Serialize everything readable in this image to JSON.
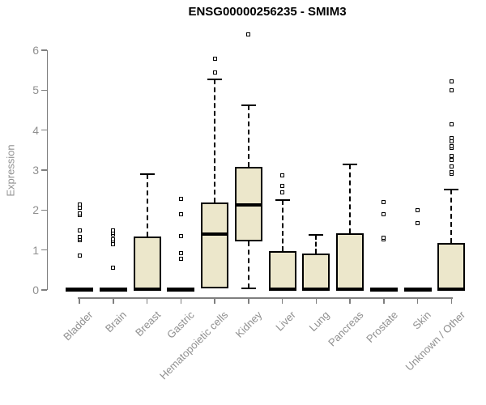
{
  "title": "ENSG00000256235 - SMIM3",
  "chart_data": {
    "type": "boxplot",
    "title": "ENSG00000256235 - SMIM3",
    "xlabel": "",
    "ylabel": "Expression",
    "ylim": [
      0,
      6.5
    ],
    "yticks": [
      0,
      1,
      2,
      3,
      4,
      5,
      6
    ],
    "grid": false,
    "legend": false,
    "box_fill": "#ece7cb",
    "box_stroke": "#000000",
    "axis_color": "#7f7f7f",
    "label_color": "#8f8f8f",
    "categories": [
      "Bladder",
      "Brain",
      "Breast",
      "Gastric",
      "Hematopoietic cells",
      "Kidney",
      "Liver",
      "Lung",
      "Pancreas",
      "Prostate",
      "Skin",
      "Unknown / Other"
    ],
    "series": [
      {
        "name": "Bladder",
        "whisker_low": 0,
        "q1": 0,
        "median": 0.02,
        "q3": 0.05,
        "whisker_high": 0.05,
        "outliers": [
          0.87,
          1.24,
          1.28,
          1.33,
          1.5,
          1.88,
          1.92,
          2.05,
          2.13
        ]
      },
      {
        "name": "Brain",
        "whisker_low": 0,
        "q1": 0,
        "median": 0.02,
        "q3": 0.05,
        "whisker_high": 0.05,
        "outliers": [
          0.55,
          1.15,
          1.22,
          1.27,
          1.38,
          1.42,
          1.48
        ]
      },
      {
        "name": "Breast",
        "whisker_low": 0,
        "q1": 0,
        "median": 0.02,
        "q3": 1.34,
        "whisker_high": 2.9,
        "outliers": []
      },
      {
        "name": "Gastric",
        "whisker_low": 0,
        "q1": 0,
        "median": 0.02,
        "q3": 0.05,
        "whisker_high": 0.05,
        "outliers": [
          0.78,
          0.93,
          1.34,
          1.89,
          2.28
        ]
      },
      {
        "name": "Hematopoietic cells",
        "whisker_low": 0,
        "q1": 0.05,
        "median": 1.4,
        "q3": 2.19,
        "whisker_high": 5.27,
        "outliers": [
          5.45,
          5.78
        ]
      },
      {
        "name": "Kidney",
        "whisker_low": 0.05,
        "q1": 1.22,
        "median": 2.12,
        "q3": 3.08,
        "whisker_high": 4.62,
        "outliers": [
          6.4
        ]
      },
      {
        "name": "Liver",
        "whisker_low": 0,
        "q1": 0,
        "median": 0.02,
        "q3": 0.97,
        "whisker_high": 2.25,
        "outliers": [
          2.45,
          2.6,
          2.86
        ]
      },
      {
        "name": "Lung",
        "whisker_low": 0,
        "q1": 0,
        "median": 0.02,
        "q3": 0.91,
        "whisker_high": 1.38,
        "outliers": []
      },
      {
        "name": "Pancreas",
        "whisker_low": 0,
        "q1": 0,
        "median": 0.02,
        "q3": 1.42,
        "whisker_high": 3.14,
        "outliers": []
      },
      {
        "name": "Prostate",
        "whisker_low": 0,
        "q1": 0,
        "median": 0.02,
        "q3": 0.05,
        "whisker_high": 0.05,
        "outliers": [
          1.26,
          1.3,
          1.89,
          2.19
        ]
      },
      {
        "name": "Skin",
        "whisker_low": 0,
        "q1": 0,
        "median": 0.02,
        "q3": 0.05,
        "whisker_high": 0.05,
        "outliers": [
          1.68,
          1.99
        ]
      },
      {
        "name": "Unknown / Other",
        "whisker_low": 0,
        "q1": 0,
        "median": 0.02,
        "q3": 1.17,
        "whisker_high": 2.52,
        "outliers": [
          2.9,
          2.95,
          3.1,
          3.25,
          3.35,
          3.55,
          3.59,
          3.71,
          3.81,
          4.14,
          4.99,
          5.21
        ]
      }
    ]
  }
}
